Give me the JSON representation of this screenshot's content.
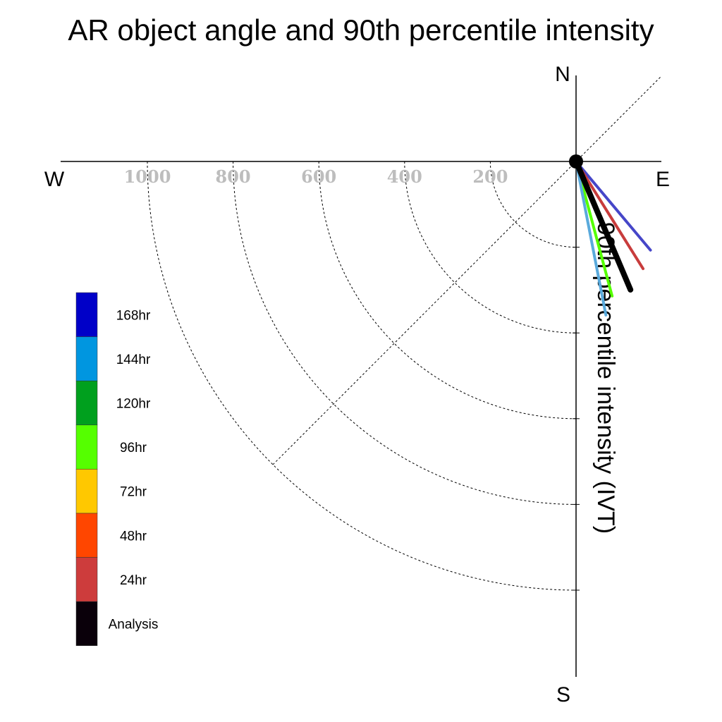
{
  "chart_data": {
    "type": "polar-vector",
    "title": "AR object angle and 90th percentile intensity",
    "axis_label": "90th percentile intensity (IVT)",
    "compass": {
      "north": "N",
      "south": "S",
      "east": "E",
      "west": "W"
    },
    "radial_ticks": [
      200,
      400,
      600,
      800,
      1000
    ],
    "radial_tick_labels": [
      "200",
      "400",
      "600",
      "800",
      "1000"
    ],
    "rmax": 1000,
    "grid": true,
    "legend_position": "left",
    "legend": [
      {
        "label": "168hr",
        "color": "#0000c8"
      },
      {
        "label": "144hr",
        "color": "#0096e0"
      },
      {
        "label": "120hr",
        "color": "#00a01e"
      },
      {
        "label": "96hr",
        "color": "#55ff00"
      },
      {
        "label": "72hr",
        "color": "#ffc800"
      },
      {
        "label": "48hr",
        "color": "#ff4600"
      },
      {
        "label": "24hr",
        "color": "#cd3c3c"
      },
      {
        "label": "Analysis",
        "color": "#0a000a"
      }
    ],
    "series": [
      {
        "name": "168hr",
        "color": "#4646c8",
        "angle_deg": 140,
        "intensity": 270
      },
      {
        "name": "24hr",
        "color": "#c83c3c",
        "angle_deg": 148,
        "intensity": 295
      },
      {
        "name": "96hr",
        "color": "#55ff00",
        "angle_deg": 165,
        "intensity": 325
      },
      {
        "name": "144hr",
        "color": "#5aaadc",
        "angle_deg": 169,
        "intensity": 365
      },
      {
        "name": "Analysis",
        "color": "#000000",
        "angle_deg": 157,
        "intensity": 325
      }
    ]
  }
}
